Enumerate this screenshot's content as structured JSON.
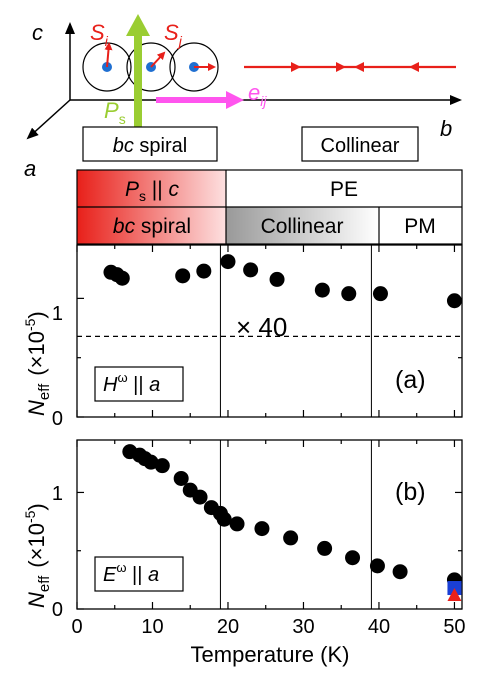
{
  "diagram": {
    "axis_c": "c",
    "axis_a": "a",
    "axis_b": "b",
    "spin_i_base": "S",
    "spin_i_sub": "i",
    "spin_j_base": "S",
    "spin_j_sub": "j",
    "polarization_base": "P",
    "polarization_sub": "s",
    "bond_vector_base": "e",
    "bond_vector_sub": "ij",
    "box_left_italic": "bc",
    "box_left_rest": " spiral",
    "box_right": "Collinear"
  },
  "phase_bar": {
    "row1": [
      {
        "label_base": "P",
        "label_sub": "s",
        "label_rest": " || ",
        "label_end": "c"
      },
      {
        "label": "PE"
      }
    ],
    "row2": [
      {
        "label_italic": "bc",
        "label_rest": " spiral"
      },
      {
        "label": "Collinear"
      },
      {
        "label": "PM"
      }
    ]
  },
  "colors": {
    "spin_arrow": "#e8201a",
    "polarization": "#9acd32",
    "bond_vector": "#ff55ee",
    "site_dot": "#1f6fd1",
    "marker": "#000000",
    "blue_square": "#1a3fd6",
    "red_triangle": "#e8201a",
    "ferro_gradient_start": "#e8201a",
    "ferro_gradient_end": "#fde0e0",
    "collinear_gradient_start": "#999999",
    "collinear_gradient_end": "#ffffff"
  },
  "chart_data": [
    {
      "type": "scatter",
      "panel_label": "(a)",
      "condition_base": "H",
      "condition_sup": "ω",
      "condition_rest": " || ",
      "condition_end": "a",
      "annotation": "× 40",
      "ylabel_base": "N",
      "ylabel_sub": "eff",
      "ylabel_unit": "(×10",
      "ylabel_exp": "-5",
      "ylabel_close": ")",
      "ylim": [
        0,
        1.45
      ],
      "xlim": [
        0,
        51
      ],
      "yticks": [
        "0",
        "1"
      ],
      "dashed_line_y": 0.68,
      "vertical_lines_x": [
        19,
        39
      ],
      "x": [
        4.5,
        5.3,
        6.0,
        14.0,
        16.8,
        20.0,
        23.0,
        26.5,
        32.5,
        36.0,
        40.2,
        50.0
      ],
      "y": [
        1.22,
        1.2,
        1.17,
        1.19,
        1.23,
        1.31,
        1.24,
        1.16,
        1.07,
        1.04,
        1.04,
        0.98
      ]
    },
    {
      "type": "scatter",
      "panel_label": "(b)",
      "condition_base": "E",
      "condition_sup": "ω",
      "condition_rest": " || ",
      "condition_end": "a",
      "ylabel_base": "N",
      "ylabel_sub": "eff",
      "ylabel_unit": "(×10",
      "ylabel_exp": "-5",
      "ylabel_close": ")",
      "ylim": [
        0,
        1.45
      ],
      "xlim": [
        0,
        51
      ],
      "xlabel": "Temperature (K)",
      "xticks": [
        "0",
        "10",
        "20",
        "30",
        "40",
        "50"
      ],
      "yticks": [
        "0",
        "1"
      ],
      "vertical_lines_x": [
        19,
        39
      ],
      "x": [
        7.0,
        8.3,
        9.0,
        9.8,
        11.3,
        13.8,
        15.0,
        16.3,
        17.8,
        19.0,
        19.5,
        21.2,
        24.5,
        28.3,
        32.8,
        36.5,
        39.8,
        42.8,
        50.0
      ],
      "y": [
        1.35,
        1.32,
        1.29,
        1.26,
        1.23,
        1.12,
        1.02,
        0.96,
        0.87,
        0.82,
        0.77,
        0.73,
        0.69,
        0.61,
        0.52,
        0.44,
        0.37,
        0.32,
        0.25
      ],
      "extra_markers": [
        {
          "shape": "square",
          "color": "#1a3fd6",
          "x": 50.0,
          "y": 0.18
        },
        {
          "shape": "triangle",
          "color": "#e8201a",
          "x": 50.0,
          "y": 0.12
        }
      ]
    }
  ]
}
